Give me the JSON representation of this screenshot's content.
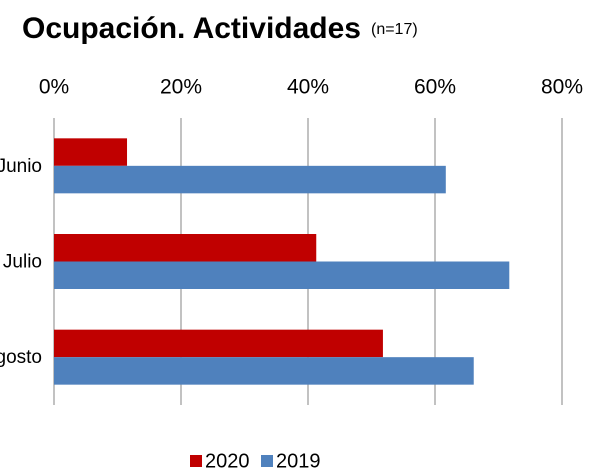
{
  "chart_data": {
    "type": "barh",
    "title": "Ocupación. Actividades",
    "subtitle": "(n=17)",
    "categories": [
      "Junio",
      "Julio",
      "Agosto"
    ],
    "series": [
      {
        "name": "2020",
        "color": "#c00000",
        "values": [
          11.5,
          41.3,
          51.8
        ]
      },
      {
        "name": "2019",
        "color": "#4f81bd",
        "values": [
          61.7,
          71.7,
          66.1
        ]
      }
    ],
    "xlim": [
      0,
      80
    ],
    "xticks": [
      {
        "value": 0,
        "label": "0%"
      },
      {
        "value": 20,
        "label": "20%"
      },
      {
        "value": 40,
        "label": "40%"
      },
      {
        "value": 60,
        "label": "60%"
      },
      {
        "value": 80,
        "label": "80%"
      }
    ],
    "grid": true,
    "legend": "bottom"
  }
}
